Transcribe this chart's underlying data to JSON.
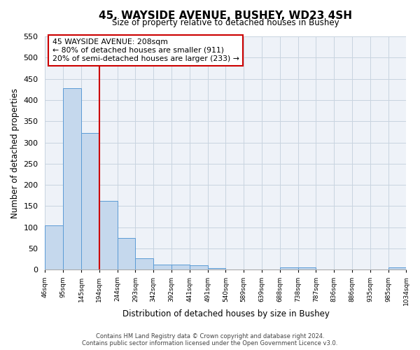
{
  "title": "45, WAYSIDE AVENUE, BUSHEY, WD23 4SH",
  "subtitle": "Size of property relative to detached houses in Bushey",
  "xlabel": "Distribution of detached houses by size in Bushey",
  "ylabel": "Number of detached properties",
  "bar_values": [
    105,
    428,
    322,
    163,
    75,
    27,
    13,
    13,
    10,
    4,
    0,
    0,
    0,
    5,
    6,
    0,
    0,
    0,
    0,
    6
  ],
  "bin_labels": [
    "46sqm",
    "95sqm",
    "145sqm",
    "194sqm",
    "244sqm",
    "293sqm",
    "342sqm",
    "392sqm",
    "441sqm",
    "491sqm",
    "540sqm",
    "589sqm",
    "639sqm",
    "688sqm",
    "738sqm",
    "787sqm",
    "836sqm",
    "886sqm",
    "935sqm",
    "985sqm",
    "1034sqm"
  ],
  "bar_color": "#c5d8ed",
  "bar_edge_color": "#5b9bd5",
  "grid_color": "#c8d4e0",
  "bg_color": "#eef2f8",
  "vline_color": "#cc0000",
  "vline_x": 3.0,
  "annotation_box_color": "#cc0000",
  "annotation_title": "45 WAYSIDE AVENUE: 208sqm",
  "annotation_line1": "← 80% of detached houses are smaller (911)",
  "annotation_line2": "20% of semi-detached houses are larger (233) →",
  "ylim": [
    0,
    550
  ],
  "yticks": [
    0,
    50,
    100,
    150,
    200,
    250,
    300,
    350,
    400,
    450,
    500,
    550
  ],
  "footer1": "Contains HM Land Registry data © Crown copyright and database right 2024.",
  "footer2": "Contains public sector information licensed under the Open Government Licence v3.0."
}
